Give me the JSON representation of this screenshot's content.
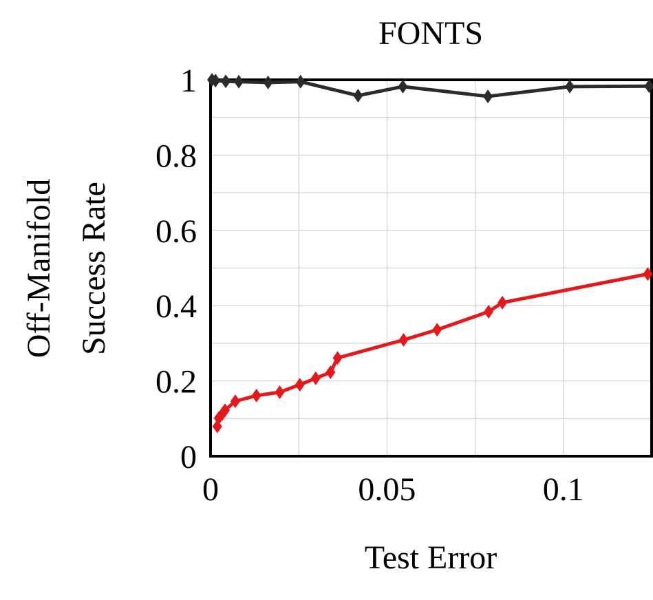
{
  "chart_data": {
    "type": "line",
    "title": "FONTS",
    "xlabel": "Test Error",
    "ylabel": [
      "Off-Manifold",
      "Success Rate"
    ],
    "xlim": [
      0,
      0.125
    ],
    "ylim": [
      0,
      1
    ],
    "xticks": [
      0,
      0.05,
      0.1
    ],
    "yticks": [
      0,
      0.2,
      0.4,
      0.6,
      0.8,
      1
    ],
    "x_minor_ticks": [
      0.025,
      0.075,
      0.125
    ],
    "y_minor_ticks": [
      0.1,
      0.3,
      0.5,
      0.7,
      0.9
    ],
    "grid": true,
    "series": [
      {
        "color": "#2b2b2b",
        "x": [
          0.0004,
          0.0014,
          0.0043,
          0.008,
          0.0163,
          0.0255,
          0.0418,
          0.0545,
          0.0786,
          0.1018,
          0.1243
        ],
        "values": [
          1.0,
          0.998,
          0.996,
          0.995,
          0.993,
          0.995,
          0.958,
          0.982,
          0.956,
          0.982,
          0.983
        ]
      },
      {
        "color": "#e31a1c",
        "x": [
          0.0019,
          0.0023,
          0.0033,
          0.0041,
          0.007,
          0.013,
          0.0196,
          0.0253,
          0.0298,
          0.034,
          0.036,
          0.0547,
          0.0642,
          0.0788,
          0.0827,
          0.1239
        ],
        "values": [
          0.079,
          0.101,
          0.112,
          0.122,
          0.146,
          0.161,
          0.17,
          0.19,
          0.207,
          0.223,
          0.261,
          0.309,
          0.336,
          0.384,
          0.408,
          0.484
        ]
      }
    ]
  }
}
